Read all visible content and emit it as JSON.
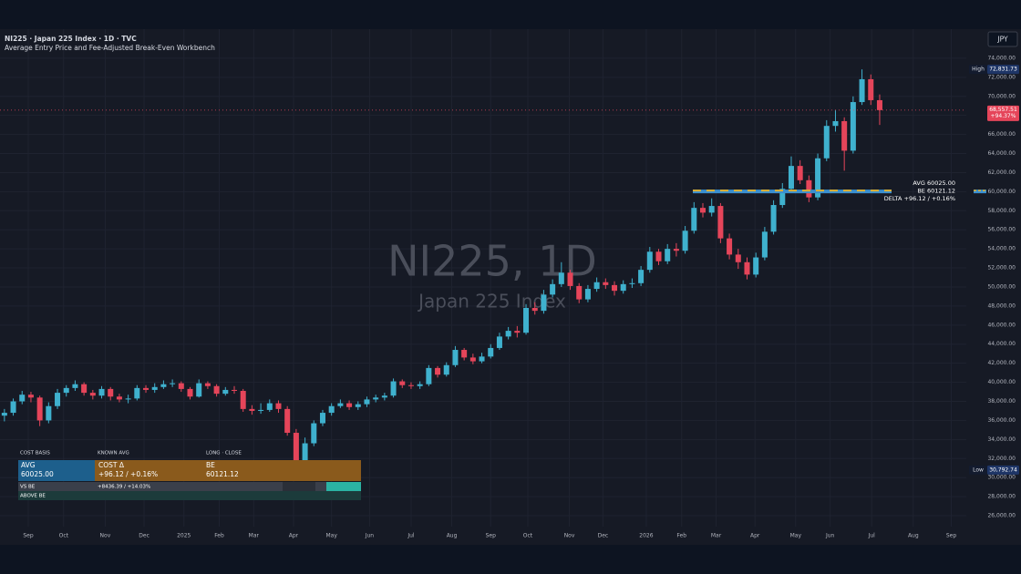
{
  "header": {
    "title": "NI225 · Japan 225 Index · 1D · TVC",
    "subtitle": "Average Entry Price and Fee-Adjusted Break-Even Workbench",
    "currency": "JPY"
  },
  "chart_data": {
    "type": "candlestick",
    "watermark": {
      "symbol": "NI225, 1D",
      "name": "Japan 225 Index"
    },
    "up_color": "#3fb1ce",
    "down_color": "#e5455a",
    "grid": true,
    "xlim": [
      -0.5,
      108.8
    ],
    "ylim": [
      25000,
      76000
    ],
    "xticks": [
      {
        "value": 2.7,
        "label": "Sep"
      },
      {
        "value": 6.7,
        "label": "Oct"
      },
      {
        "value": 11.4,
        "label": "Nov"
      },
      {
        "value": 15.8,
        "label": "Dec"
      },
      {
        "value": 20.3,
        "label": "2025"
      },
      {
        "value": 24.3,
        "label": "Feb"
      },
      {
        "value": 28.2,
        "label": "Mar"
      },
      {
        "value": 32.7,
        "label": "Apr"
      },
      {
        "value": 37,
        "label": "May"
      },
      {
        "value": 41.3,
        "label": "Jun"
      },
      {
        "value": 46,
        "label": "Jul"
      },
      {
        "value": 50.6,
        "label": "Aug"
      },
      {
        "value": 55,
        "label": "Sep"
      },
      {
        "value": 59.2,
        "label": "Oct"
      },
      {
        "value": 63.9,
        "label": "Nov"
      },
      {
        "value": 67.7,
        "label": "Dec"
      },
      {
        "value": 72.6,
        "label": "2026"
      },
      {
        "value": 76.6,
        "label": "Feb"
      },
      {
        "value": 80.5,
        "label": "Mar"
      },
      {
        "value": 84.9,
        "label": "Apr"
      },
      {
        "value": 89.5,
        "label": "May"
      },
      {
        "value": 93.4,
        "label": "Jun"
      },
      {
        "value": 98.1,
        "label": "Jul"
      },
      {
        "value": 102.8,
        "label": "Aug"
      },
      {
        "value": 107.1,
        "label": "Sep"
      }
    ],
    "yticks": [
      {
        "value": 26000,
        "label": "26,000.00"
      },
      {
        "value": 28000,
        "label": "28,000.00"
      },
      {
        "value": 30000,
        "label": "30,000.00"
      },
      {
        "value": 32000,
        "label": "32,000.00"
      },
      {
        "value": 34000,
        "label": "34,000.00"
      },
      {
        "value": 36000,
        "label": "36,000.00"
      },
      {
        "value": 38000,
        "label": "38,000.00"
      },
      {
        "value": 40000,
        "label": "40,000.00"
      },
      {
        "value": 42000,
        "label": "42,000.00"
      },
      {
        "value": 44000,
        "label": "44,000.00"
      },
      {
        "value": 46000,
        "label": "46,000.00"
      },
      {
        "value": 48000,
        "label": "48,000.00"
      },
      {
        "value": 50000,
        "label": "50,000.00"
      },
      {
        "value": 52000,
        "label": "52,000.00"
      },
      {
        "value": 54000,
        "label": "54,000.00"
      },
      {
        "value": 56000,
        "label": "56,000.00"
      },
      {
        "value": 58000,
        "label": "58,000.00"
      },
      {
        "value": 60000,
        "label": "60,000.00"
      },
      {
        "value": 62000,
        "label": "62,000.00"
      },
      {
        "value": 64000,
        "label": "64,000.00"
      },
      {
        "value": 66000,
        "label": "66,000.00"
      },
      {
        "value": 68000,
        "label": "68,000.00"
      },
      {
        "value": 70000,
        "label": "70,000.00"
      },
      {
        "value": 72000,
        "label": "72,000.00"
      },
      {
        "value": 74000,
        "label": "74,000.00"
      }
    ],
    "candles": [
      [
        36500,
        37200,
        35900,
        36800
      ],
      [
        36800,
        38300,
        36500,
        38000
      ],
      [
        38000,
        39100,
        37700,
        38700
      ],
      [
        38700,
        39000,
        37900,
        38400
      ],
      [
        38400,
        38600,
        35400,
        36000
      ],
      [
        36000,
        37900,
        35700,
        37500
      ],
      [
        37500,
        39300,
        37200,
        38900
      ],
      [
        38900,
        39700,
        38500,
        39400
      ],
      [
        39400,
        40200,
        39100,
        39800
      ],
      [
        39800,
        40000,
        38600,
        38900
      ],
      [
        38900,
        39200,
        38200,
        38600
      ],
      [
        38600,
        39600,
        38300,
        39300
      ],
      [
        39300,
        39500,
        38100,
        38500
      ],
      [
        38500,
        38800,
        37900,
        38200
      ],
      [
        38200,
        38700,
        37800,
        38300
      ],
      [
        38300,
        39700,
        38100,
        39400
      ],
      [
        39400,
        39700,
        38900,
        39200
      ],
      [
        39200,
        39900,
        38900,
        39500
      ],
      [
        39500,
        40200,
        39300,
        39800
      ],
      [
        39800,
        40300,
        39500,
        39900
      ],
      [
        39900,
        40100,
        39000,
        39300
      ],
      [
        39300,
        39500,
        38200,
        38500
      ],
      [
        38500,
        40300,
        38400,
        39900
      ],
      [
        39900,
        40100,
        39300,
        39600
      ],
      [
        39600,
        39800,
        38500,
        38800
      ],
      [
        38800,
        39500,
        38600,
        39200
      ],
      [
        39200,
        39600,
        38800,
        39100
      ],
      [
        39100,
        39300,
        36900,
        37200
      ],
      [
        37200,
        37600,
        36600,
        37000
      ],
      [
        37000,
        37800,
        36700,
        37100
      ],
      [
        37100,
        38200,
        36900,
        37800
      ],
      [
        37800,
        38100,
        36800,
        37200
      ],
      [
        37200,
        37500,
        34400,
        34700
      ],
      [
        34700,
        35100,
        30792.74,
        31500
      ],
      [
        31500,
        34200,
        31200,
        33600
      ],
      [
        33600,
        36000,
        33300,
        35700
      ],
      [
        35700,
        37100,
        35400,
        36800
      ],
      [
        36800,
        37800,
        36500,
        37500
      ],
      [
        37500,
        38200,
        37300,
        37800
      ],
      [
        37800,
        38100,
        37100,
        37400
      ],
      [
        37400,
        38000,
        37100,
        37700
      ],
      [
        37700,
        38500,
        37400,
        38200
      ],
      [
        38200,
        38700,
        37900,
        38400
      ],
      [
        38400,
        38900,
        38100,
        38600
      ],
      [
        38600,
        40400,
        38400,
        40100
      ],
      [
        40100,
        40300,
        39400,
        39700
      ],
      [
        39700,
        40000,
        39300,
        39600
      ],
      [
        39600,
        40100,
        39300,
        39800
      ],
      [
        39800,
        41800,
        39600,
        41500
      ],
      [
        41500,
        41700,
        40500,
        40800
      ],
      [
        40800,
        42100,
        40600,
        41800
      ],
      [
        41800,
        43800,
        41600,
        43400
      ],
      [
        43400,
        43600,
        42300,
        42600
      ],
      [
        42600,
        43000,
        41900,
        42200
      ],
      [
        42200,
        43100,
        42000,
        42700
      ],
      [
        42700,
        44000,
        42500,
        43600
      ],
      [
        43600,
        45200,
        43400,
        44800
      ],
      [
        44800,
        45800,
        44500,
        45400
      ],
      [
        45400,
        45900,
        44700,
        45200
      ],
      [
        45200,
        48200,
        45000,
        47800
      ],
      [
        47800,
        48400,
        47100,
        47500
      ],
      [
        47500,
        49700,
        47200,
        49200
      ],
      [
        49200,
        50800,
        48900,
        50300
      ],
      [
        50300,
        52600,
        50000,
        51500
      ],
      [
        51500,
        51800,
        49700,
        50100
      ],
      [
        50100,
        50400,
        48300,
        48700
      ],
      [
        48700,
        50200,
        48400,
        49800
      ],
      [
        49800,
        51000,
        49500,
        50500
      ],
      [
        50500,
        50900,
        49800,
        50200
      ],
      [
        50200,
        50600,
        49100,
        49600
      ],
      [
        49600,
        50700,
        49300,
        50300
      ],
      [
        50300,
        50900,
        49900,
        50400
      ],
      [
        50400,
        52200,
        50100,
        51800
      ],
      [
        51800,
        54200,
        51500,
        53700
      ],
      [
        53700,
        54000,
        52300,
        52700
      ],
      [
        52700,
        54500,
        52400,
        54000
      ],
      [
        54000,
        54600,
        53200,
        53800
      ],
      [
        53800,
        56400,
        53500,
        55900
      ],
      [
        55900,
        58900,
        55600,
        58300
      ],
      [
        58300,
        58800,
        57300,
        57800
      ],
      [
        57800,
        59300,
        57400,
        58500
      ],
      [
        58500,
        58800,
        54600,
        55100
      ],
      [
        55100,
        55600,
        52900,
        53400
      ],
      [
        53400,
        54000,
        51900,
        52600
      ],
      [
        52600,
        53100,
        50800,
        51300
      ],
      [
        51300,
        53600,
        51000,
        53100
      ],
      [
        53100,
        56300,
        52800,
        55800
      ],
      [
        55800,
        59100,
        55500,
        58600
      ],
      [
        58600,
        60900,
        58300,
        60300
      ],
      [
        60300,
        63700,
        60000,
        62700
      ],
      [
        62700,
        63300,
        60800,
        61200
      ],
      [
        61200,
        61700,
        58900,
        59400
      ],
      [
        59400,
        64000,
        59100,
        63500
      ],
      [
        63500,
        67500,
        63200,
        66900
      ],
      [
        66900,
        68600,
        66300,
        67400
      ],
      [
        67400,
        67800,
        62200,
        64300
      ],
      [
        64300,
        70000,
        64000,
        69400
      ],
      [
        69400,
        72831.73,
        69100,
        71800
      ],
      [
        71800,
        72300,
        69100,
        69600
      ],
      [
        69600,
        70200,
        67000,
        68557.51
      ]
    ],
    "high_marker": {
      "tag": "High",
      "label": "72,831.73",
      "value": 72831.73
    },
    "low_marker": {
      "tag": "Low",
      "label": "30,792.74",
      "value": 30792.74
    },
    "last_price": {
      "label": "68,557.51",
      "change": "+94.37%",
      "value": 68557.51
    },
    "levels": {
      "avg": 60025,
      "be": 60121.12,
      "labels": [
        "AVG 60025.00",
        "BE 60121.12",
        "DELTA +96.12 / +0.16%"
      ]
    }
  },
  "panel": {
    "headers": [
      "COST BASIS",
      "KNOWN AVG",
      "LONG  ·  CLOSE"
    ],
    "cells": [
      [
        "AVG",
        "60025.00"
      ],
      [
        "COST Δ",
        "+96.12 / +0.16%"
      ],
      [
        "BE",
        "60121.12"
      ]
    ],
    "rows": [
      [
        "VS BE",
        "+8436.39 / +14.03%"
      ],
      [
        "ABOVE BE"
      ]
    ]
  }
}
